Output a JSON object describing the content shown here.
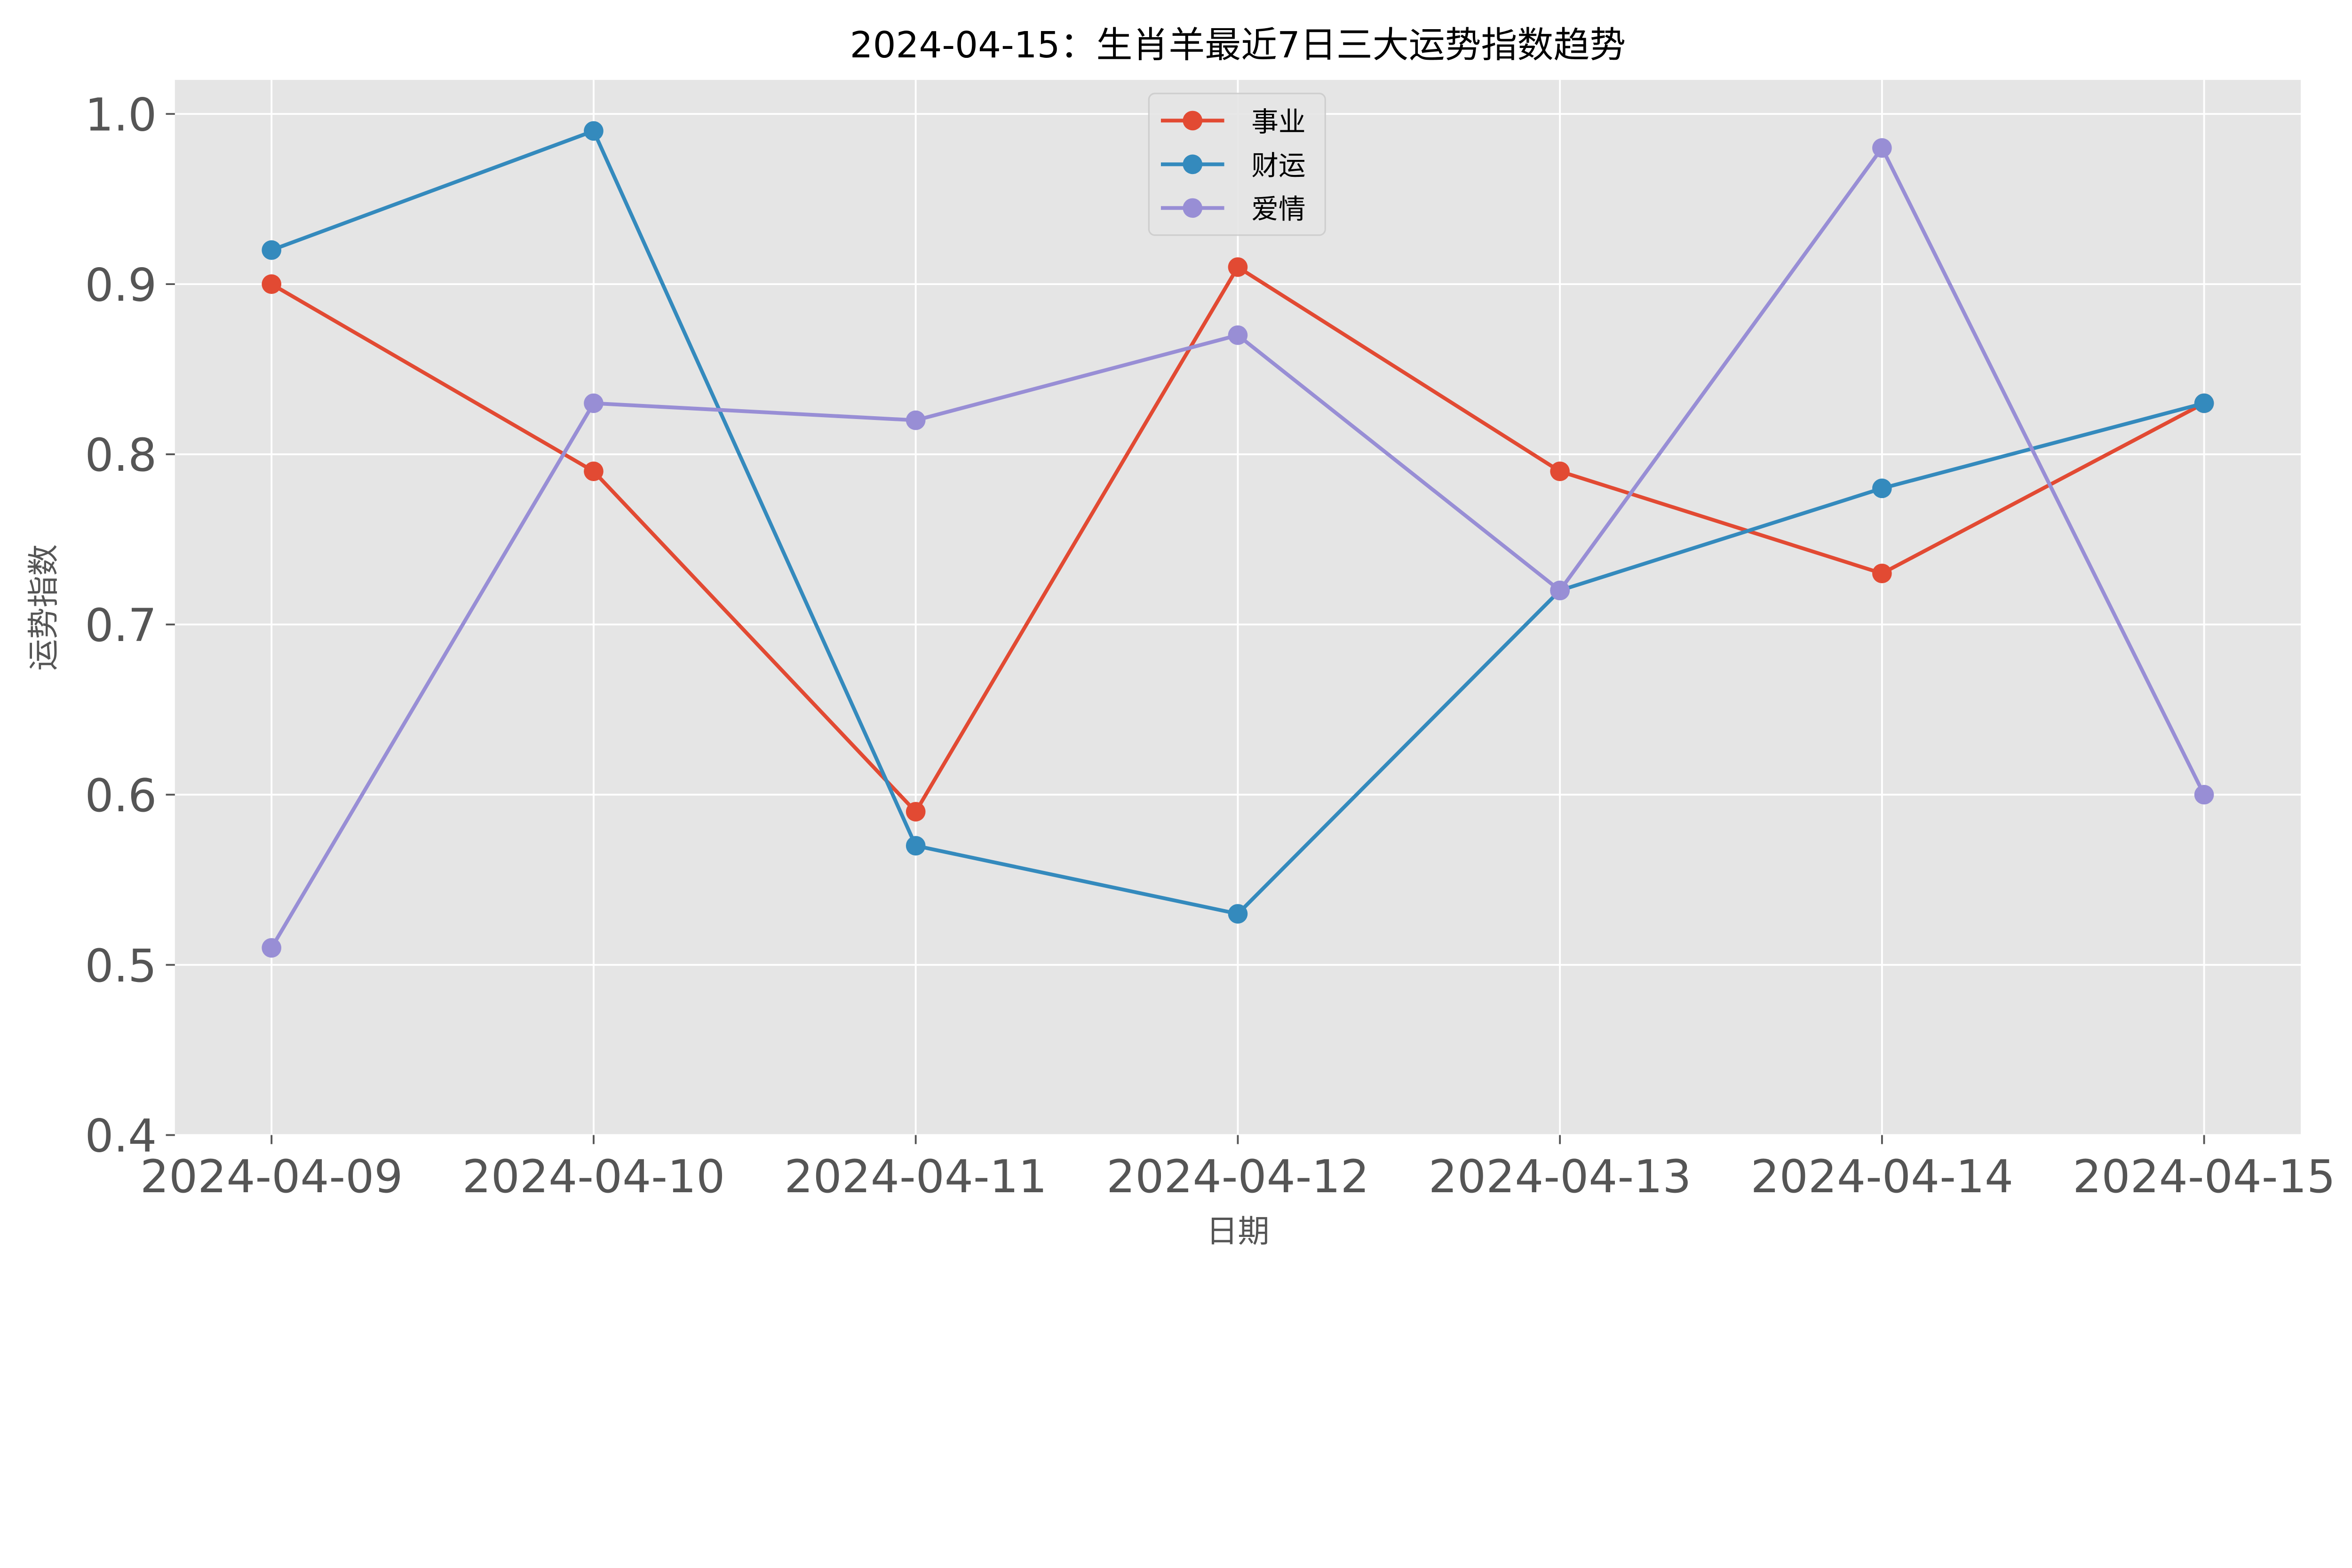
{
  "chart_data": {
    "type": "line",
    "title": "2024-04-15：生肖羊最近7日三大运势指数趋势",
    "xlabel": "日期",
    "ylabel": "运势指数",
    "categories": [
      "2024-04-09",
      "2024-04-10",
      "2024-04-11",
      "2024-04-12",
      "2024-04-13",
      "2024-04-14",
      "2024-04-15"
    ],
    "ylim": [
      0.4,
      1.02
    ],
    "yticks": [
      "0.4",
      "0.5",
      "0.6",
      "0.7",
      "0.8",
      "0.9",
      "1.0"
    ],
    "grid": true,
    "legend_position": "upper-center",
    "background": "#E5E5E5",
    "series": [
      {
        "name": "事业",
        "color": "#E24A33",
        "values": [
          0.9,
          0.79,
          0.59,
          0.91,
          0.79,
          0.73,
          0.83
        ]
      },
      {
        "name": "财运",
        "color": "#348ABD",
        "values": [
          0.92,
          0.99,
          0.57,
          0.53,
          0.72,
          0.78,
          0.83
        ]
      },
      {
        "name": "爱情",
        "color": "#988ED5",
        "values": [
          0.51,
          0.83,
          0.82,
          0.87,
          0.72,
          0.98,
          0.6
        ]
      }
    ]
  }
}
